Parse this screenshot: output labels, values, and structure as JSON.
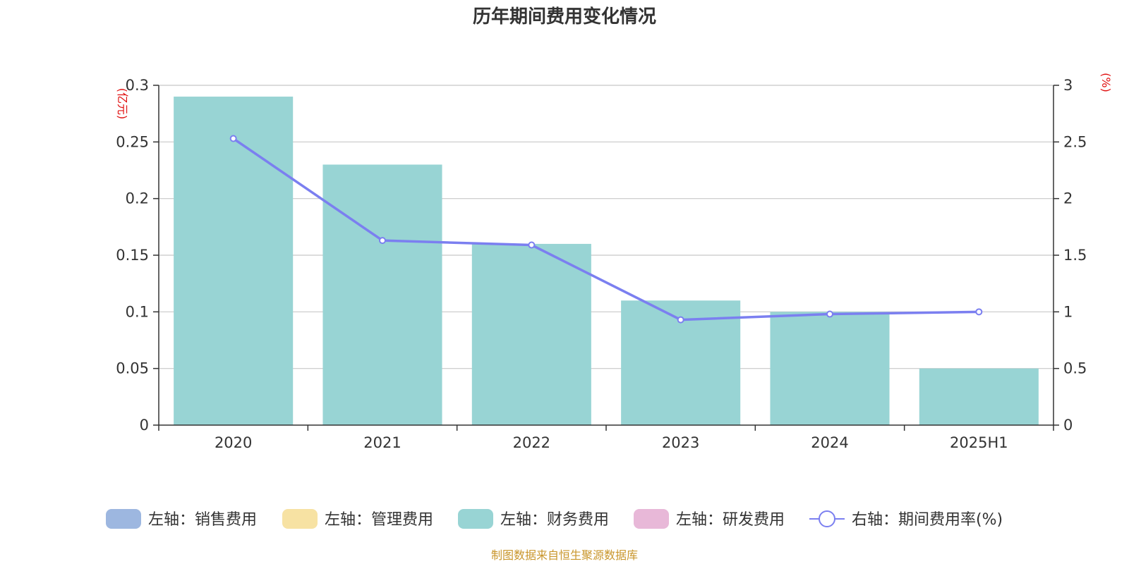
{
  "chart_data": {
    "type": "bar",
    "title": "历年期间费用变化情况",
    "categories": [
      "2020",
      "2021",
      "2022",
      "2023",
      "2024",
      "2025H1"
    ],
    "left_axis": {
      "unit_label": "(亿元)",
      "ylim": [
        0,
        0.3
      ],
      "ticks": [
        "0",
        "0.05",
        "0.1",
        "0.15",
        "0.2",
        "0.25",
        "0.3"
      ]
    },
    "right_axis": {
      "unit_label": "(%)",
      "ylim": [
        0,
        3
      ],
      "ticks": [
        "0",
        "0.5",
        "1",
        "1.5",
        "2",
        "2.5",
        "3"
      ]
    },
    "series": [
      {
        "name": "左轴：销售费用",
        "type": "bar",
        "axis": "left",
        "color": "#9db7e0",
        "values": [
          0,
          0,
          0,
          0,
          0,
          0
        ]
      },
      {
        "name": "左轴：管理费用",
        "type": "bar",
        "axis": "left",
        "color": "#f7e2a3",
        "values": [
          0,
          0,
          0,
          0,
          0,
          0
        ]
      },
      {
        "name": "左轴：财务费用",
        "type": "bar",
        "axis": "left",
        "color": "#98d4d4",
        "values": [
          0.29,
          0.23,
          0.16,
          0.11,
          0.1,
          0.05
        ]
      },
      {
        "name": "左轴：研发费用",
        "type": "bar",
        "axis": "left",
        "color": "#e8b8d8",
        "values": [
          0,
          0,
          0,
          0,
          0,
          0
        ]
      },
      {
        "name": "右轴：期间费用率(%)",
        "type": "line",
        "axis": "right",
        "color": "#7b7ff0",
        "values": [
          2.53,
          1.63,
          1.59,
          0.93,
          0.98,
          1.0
        ]
      }
    ],
    "grid": true,
    "legend_position": "bottom"
  },
  "footer": {
    "source": "制图数据来自恒生聚源数据库"
  }
}
